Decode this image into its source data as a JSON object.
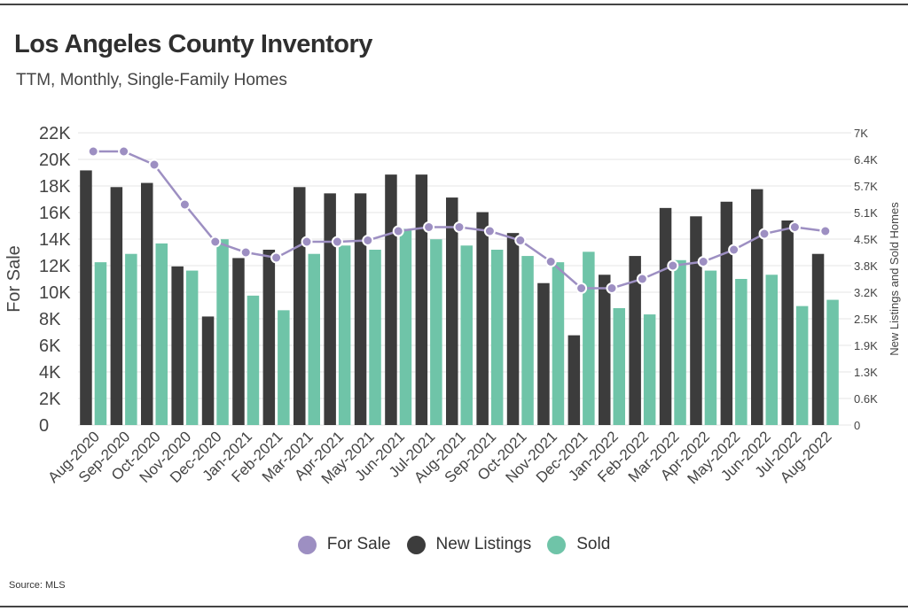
{
  "header": {
    "title": "Los Angeles County Inventory",
    "subtitle": "TTM, Monthly, Single-Family Homes"
  },
  "footer": {
    "source": "Source:  MLS"
  },
  "colors": {
    "for_sale": "#9d8fc2",
    "new_listings": "#3c3c3c",
    "sold": "#6fc4a8",
    "grid": "#e6e6e6"
  },
  "legend": [
    {
      "label": "For Sale",
      "color": "#9d8fc2"
    },
    {
      "label": "New Listings",
      "color": "#3c3c3c"
    },
    {
      "label": "Sold",
      "color": "#6fc4a8"
    }
  ],
  "chart_data": {
    "type": "bar",
    "title": "Los Angeles County Inventory",
    "subtitle": "TTM, Monthly, Single-Family Homes",
    "categories": [
      "Aug-2020",
      "Sep-2020",
      "Oct-2020",
      "Nov-2020",
      "Dec-2020",
      "Jan-2021",
      "Feb-2021",
      "Mar-2021",
      "Apr-2021",
      "May-2021",
      "Jun-2021",
      "Jul-2021",
      "Aug-2021",
      "Sep-2021",
      "Oct-2021",
      "Nov-2021",
      "Dec-2021",
      "Jan-2022",
      "Feb-2022",
      "Mar-2022",
      "Apr-2022",
      "May-2022",
      "Jun-2022",
      "Jul-2022",
      "Aug-2022"
    ],
    "ylabel_left": "For Sale",
    "ylabel_right": "New Listings and Sold Homes",
    "y_left_ticks": [
      "0",
      "2K",
      "4K",
      "6K",
      "8K",
      "10K",
      "12K",
      "14K",
      "16K",
      "18K",
      "20K",
      "22K"
    ],
    "y_left_range": [
      0,
      22000
    ],
    "y_right_ticks": [
      "0",
      "0.6K",
      "1.3K",
      "1.9K",
      "2.5K",
      "3.2K",
      "3.8K",
      "4.5K",
      "5.1K",
      "5.7K",
      "6.4K",
      "7K"
    ],
    "y_right_range": [
      0,
      7000
    ],
    "grid": true,
    "legend_position": "bottom",
    "series": [
      {
        "name": "For Sale",
        "type": "line",
        "axis": "left",
        "values": [
          20600,
          20600,
          19600,
          16600,
          13800,
          13000,
          12600,
          13800,
          13800,
          13900,
          14600,
          14900,
          14900,
          14600,
          13900,
          12300,
          10300,
          10300,
          11000,
          12000,
          12300,
          13200,
          14400,
          14900,
          14600
        ]
      },
      {
        "name": "New Listings",
        "type": "bar",
        "axis": "right",
        "values": [
          6100,
          5700,
          5800,
          3800,
          2600,
          4000,
          4200,
          5700,
          5550,
          5550,
          6000,
          6000,
          5450,
          5100,
          4600,
          3400,
          2150,
          3600,
          4050,
          5200,
          5000,
          5350,
          5650,
          4900,
          4100
        ]
      },
      {
        "name": "Sold",
        "type": "bar",
        "axis": "right",
        "values": [
          3900,
          4100,
          4350,
          3700,
          4450,
          3100,
          2750,
          4100,
          4300,
          4200,
          4700,
          4450,
          4300,
          4200,
          4050,
          3900,
          4150,
          2800,
          2650,
          3950,
          3700,
          3500,
          3600,
          2850,
          3000
        ]
      }
    ]
  }
}
